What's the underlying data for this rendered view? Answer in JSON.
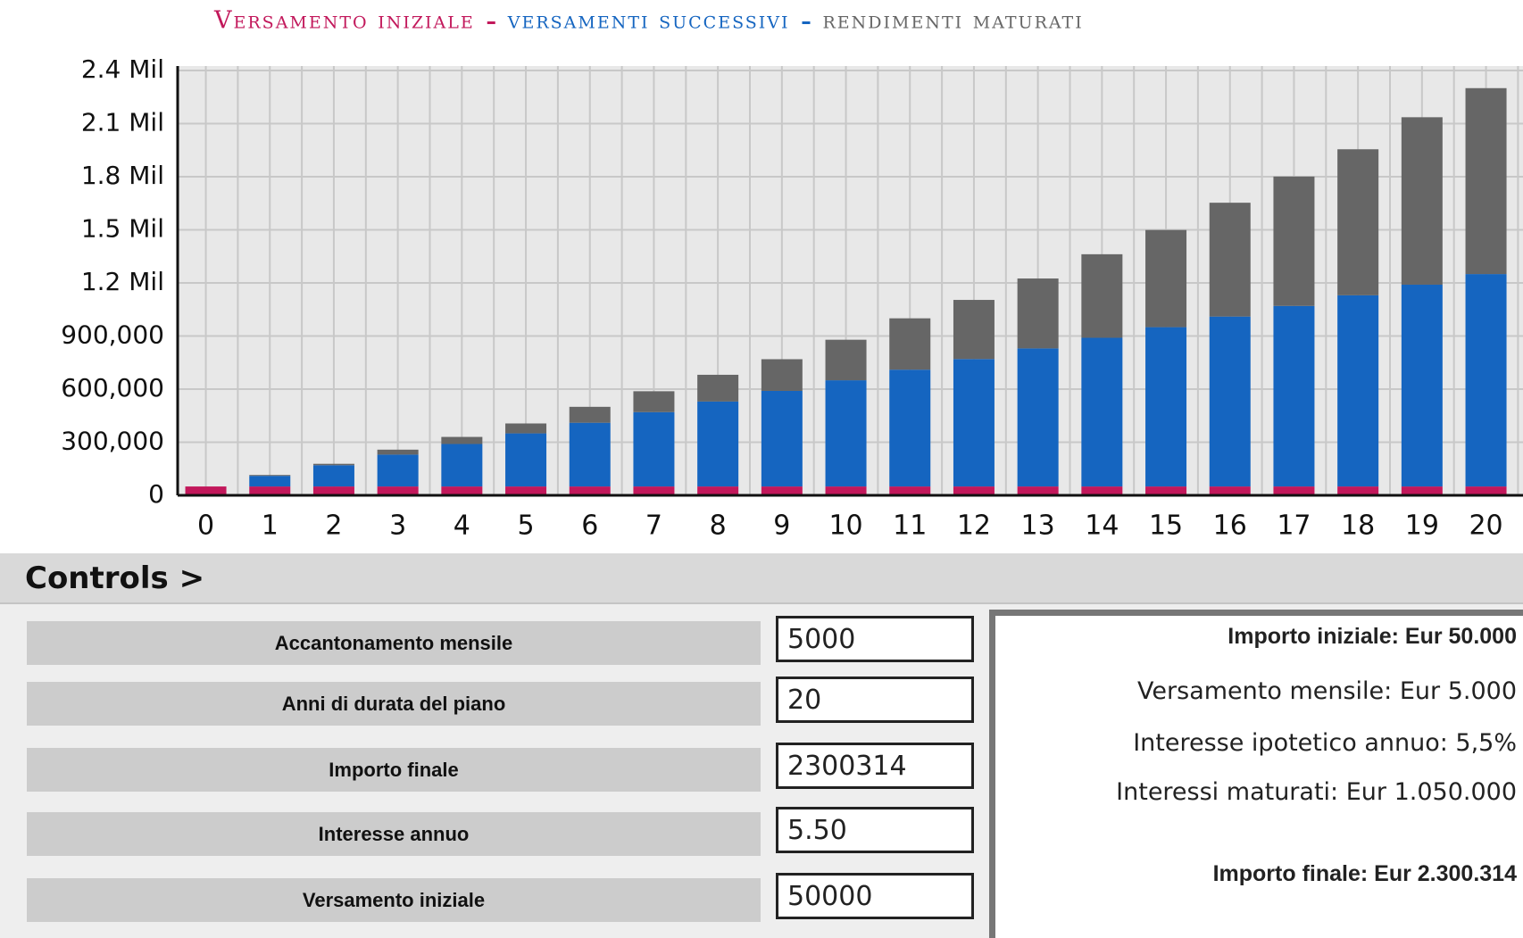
{
  "chart_data": {
    "type": "bar",
    "stacked": true,
    "categories": [
      "0",
      "1",
      "2",
      "3",
      "4",
      "5",
      "6",
      "7",
      "8",
      "9",
      "10",
      "11",
      "12",
      "13",
      "14",
      "15",
      "16",
      "17",
      "18",
      "19",
      "20"
    ],
    "series": [
      {
        "name": "Versamento iniziale",
        "color": "#c2185b",
        "values": [
          50000,
          50000,
          50000,
          50000,
          50000,
          50000,
          50000,
          50000,
          50000,
          50000,
          50000,
          50000,
          50000,
          50000,
          50000,
          50000,
          50000,
          50000,
          50000,
          50000,
          50000
        ]
      },
      {
        "name": "versamenti successivi",
        "color": "#1565c0",
        "values": [
          0,
          60000,
          120000,
          180000,
          240000,
          300000,
          360000,
          420000,
          480000,
          540000,
          600000,
          660000,
          720000,
          780000,
          840000,
          900000,
          960000,
          1020000,
          1080000,
          1140000,
          1200000
        ]
      },
      {
        "name": "rendimenti maturati",
        "color": "#666666",
        "values": [
          0,
          5000,
          8000,
          28000,
          40000,
          56000,
          90000,
          118000,
          151000,
          179000,
          229000,
          290000,
          334000,
          395000,
          472000,
          549000,
          643000,
          731000,
          825000,
          946000,
          1050314
        ]
      }
    ],
    "ylim": [
      0,
      2400000
    ],
    "yticks": [
      0,
      {
        "value": 300000,
        "label": "300,000"
      },
      {
        "value": 600000,
        "label": "600,000"
      },
      {
        "value": 900000,
        "label": "900,000"
      },
      {
        "value": 1200000,
        "label": "1.2 Mil"
      },
      {
        "value": 1500000,
        "label": "1.5 Mil"
      },
      {
        "value": 1800000,
        "label": "1.8 Mil"
      },
      {
        "value": 2100000,
        "label": "2.1 Mil"
      },
      {
        "value": 2400000,
        "label": "2.4 Mil"
      }
    ],
    "grid": true
  },
  "controls": {
    "title": "Controls >",
    "inputs": [
      {
        "label": "Accantonamento mensile",
        "value": "5000"
      },
      {
        "label": "Anni di durata del piano",
        "value": "20"
      },
      {
        "label": "Importo finale",
        "value": "2300314"
      },
      {
        "label": "Interesse annuo",
        "value": "5.50"
      },
      {
        "label": "Versamento iniziale",
        "value": "50000"
      }
    ]
  },
  "summary": [
    {
      "text": "Importo iniziale: Eur 50.000",
      "bold": true
    },
    {
      "text": "Versamento mensile: Eur 5.000",
      "bold": false
    },
    {
      "text": "Interesse ipotetico annuo: 5,5%",
      "bold": false
    },
    {
      "text": "Interessi maturati: Eur 1.050.000",
      "bold": false
    },
    {
      "text": "Importo finale: Eur 2.300.314",
      "bold": true
    }
  ]
}
